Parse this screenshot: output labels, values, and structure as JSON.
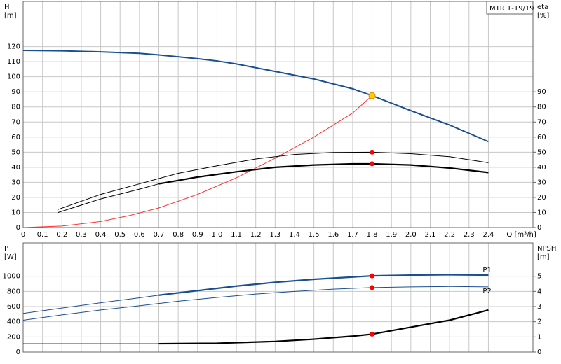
{
  "chart_data": [
    {
      "type": "line",
      "box_label": "MTR 1-19/19",
      "y_label": "H",
      "y_unit": "[m]",
      "y2_label": "eta",
      "y2_unit": "[%]",
      "x_label": "Q [m³/h]",
      "xlim": [
        0,
        2.63
      ],
      "xticks": [
        0,
        0.1,
        0.2,
        0.3,
        0.4,
        0.5,
        0.6,
        0.7,
        0.8,
        0.9,
        {
          "value": 1,
          "label": "1.0"
        },
        1.1,
        1.2,
        1.3,
        1.4,
        1.5,
        1.6,
        1.7,
        1.8,
        1.9,
        {
          "value": 2,
          "label": "2.0"
        },
        2.1,
        2.2,
        2.3,
        2.4
      ],
      "ylim": [
        0,
        150
      ],
      "yticks": [
        0,
        10,
        20,
        30,
        40,
        50,
        60,
        70,
        80,
        90,
        100,
        110,
        120
      ],
      "y2lim": [
        0,
        150
      ],
      "y2ticks": [
        0,
        10,
        20,
        30,
        40,
        50,
        60,
        70,
        80,
        90
      ],
      "series": [
        {
          "color": "#1a4f8f",
          "width": 2,
          "x": [
            0,
            0.2,
            0.4,
            0.6,
            0.7,
            0.9,
            1.0,
            1.1,
            1.3,
            1.5,
            1.7,
            1.8,
            2.0,
            2.2,
            2.4
          ],
          "values": [
            117.5,
            117.2,
            116.5,
            115.5,
            114.5,
            112,
            110.5,
            108.5,
            103.5,
            98.5,
            92,
            87.5,
            77.5,
            68,
            57
          ]
        },
        {
          "color": "#ff3030",
          "width": 1,
          "axis": "y2",
          "x": [
            0,
            0.2,
            0.4,
            0.55,
            0.7,
            0.9,
            1.1,
            1.3,
            1.5,
            1.7,
            1.8
          ],
          "values": [
            0,
            1,
            4,
            8,
            13,
            22,
            33,
            46,
            60,
            76,
            87.5
          ]
        },
        {
          "color": "#000000",
          "width": 1,
          "axis": "y2",
          "x": [
            0.18,
            0.4,
            0.6,
            0.8,
            1.0,
            1.2,
            1.4,
            1.6,
            1.8,
            2.0,
            2.2,
            2.4
          ],
          "values": [
            12,
            22,
            29,
            36,
            41,
            45.5,
            48.5,
            49.8,
            50,
            49,
            47,
            43
          ]
        },
        {
          "color": "#000000",
          "width": 1,
          "bold_from": 0.7,
          "axis": "y2",
          "x": [
            0.18,
            0.4,
            0.6,
            0.7,
            0.9,
            1.1,
            1.3,
            1.5,
            1.7,
            1.8,
            2.0,
            2.2,
            2.4
          ],
          "values": [
            10,
            19,
            25.5,
            29,
            33.5,
            37,
            40,
            41.5,
            42.3,
            42.3,
            41.5,
            39.5,
            36.5
          ]
        }
      ],
      "points": [
        {
          "x": 1.8,
          "y": 87.5,
          "color": "#ffcc00"
        },
        {
          "x": 1.8,
          "y": 50,
          "color": "#ff0000",
          "axis": "y2"
        },
        {
          "x": 1.8,
          "y": 42.3,
          "color": "#ff0000",
          "axis": "y2"
        }
      ]
    },
    {
      "type": "line",
      "y_label": "P",
      "y_unit": "[W]",
      "y2_label": "NPSH",
      "y2_unit": "[m]",
      "xlim": [
        0,
        2.63
      ],
      "ylim": [
        0,
        1440
      ],
      "yticks": [
        0,
        200,
        400,
        600,
        800,
        1000
      ],
      "y2lim": [
        0,
        7.2
      ],
      "y2ticks": [
        0,
        1,
        2,
        3,
        4,
        5
      ],
      "series": [
        {
          "name": "P1",
          "color": "#1a4f8f",
          "width": 1,
          "bold_from": 0.7,
          "x": [
            0,
            0.2,
            0.4,
            0.6,
            0.7,
            0.9,
            1.1,
            1.3,
            1.5,
            1.7,
            1.8,
            2.0,
            2.2,
            2.4
          ],
          "values": [
            510,
            580,
            650,
            715,
            750,
            810,
            870,
            920,
            960,
            990,
            1005,
            1015,
            1020,
            1015
          ]
        },
        {
          "name": "P2",
          "color": "#1a4f8f",
          "width": 1,
          "x": [
            0,
            0.2,
            0.4,
            0.6,
            0.8,
            1.0,
            1.2,
            1.4,
            1.6,
            1.8,
            2.0,
            2.2,
            2.4
          ],
          "values": [
            420,
            490,
            555,
            610,
            670,
            720,
            765,
            800,
            830,
            850,
            860,
            865,
            860
          ]
        },
        {
          "color": "#000000",
          "width": 1,
          "bold_from": 0.7,
          "axis": "y2",
          "x": [
            0,
            0.7,
            1.0,
            1.3,
            1.5,
            1.7,
            1.8,
            2.0,
            2.2,
            2.4
          ],
          "values": [
            0.55,
            0.55,
            0.58,
            0.7,
            0.85,
            1.05,
            1.18,
            1.64,
            2.1,
            2.77
          ]
        }
      ],
      "points": [
        {
          "x": 1.8,
          "y": 1005,
          "color": "#ff0000"
        },
        {
          "x": 1.8,
          "y": 850,
          "color": "#ff0000"
        },
        {
          "x": 1.8,
          "y": 1.18,
          "color": "#ff0000",
          "axis": "y2"
        }
      ]
    }
  ]
}
